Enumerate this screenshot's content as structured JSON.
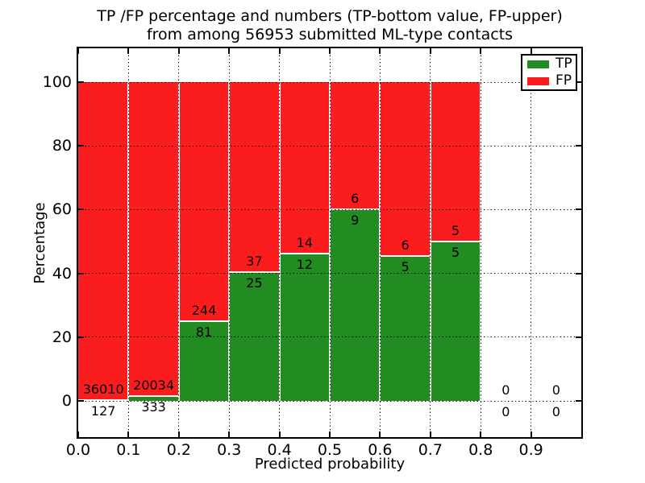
{
  "title": {
    "line1": "TP /FP percentage and numbers (TP-bottom value, FP-upper)",
    "line2": "from among 56953 submitted ML-type contacts"
  },
  "chart_data": {
    "type": "bar",
    "stacked": true,
    "title": "TP /FP percentage and numbers (TP-bottom value, FP-upper) from among 56953 submitted ML-type contacts",
    "total_submitted_contacts": 56953,
    "xlabel": "Predicted probability",
    "ylabel": "Percentage",
    "x_tick_labels": [
      "0.0",
      "0.1",
      "0.2",
      "0.3",
      "0.4",
      "0.5",
      "0.6",
      "0.7",
      "0.8",
      "0.9"
    ],
    "y_ticks": [
      0,
      20,
      40,
      60,
      80,
      100
    ],
    "y_tick_labels": [
      "0",
      "20",
      "40",
      "60",
      "80",
      "100"
    ],
    "xlim": [
      0.0,
      1.0
    ],
    "bin_width": 0.1,
    "bin_starts": [
      0.0,
      0.1,
      0.2,
      0.3,
      0.4,
      0.5,
      0.6,
      0.7,
      0.8,
      0.9
    ],
    "grid": "dotted",
    "legend_position": "upper right",
    "series": [
      {
        "name": "TP",
        "color": "#228b22",
        "counts": [
          127,
          333,
          81,
          25,
          12,
          9,
          5,
          5,
          0,
          0
        ]
      },
      {
        "name": "FP",
        "color": "#fb1d1d",
        "counts": [
          36010,
          20034,
          244,
          37,
          14,
          6,
          6,
          5,
          0,
          0
        ]
      }
    ],
    "tp_percent": [
      0.35,
      1.64,
      24.92,
      40.32,
      46.15,
      60.0,
      45.45,
      50.0,
      0,
      0
    ],
    "fp_percent": [
      99.65,
      98.36,
      75.08,
      59.68,
      53.85,
      40.0,
      54.55,
      50.0,
      0,
      0
    ]
  },
  "legend": {
    "items": [
      {
        "label": "TP",
        "color": "#228b22"
      },
      {
        "label": "FP",
        "color": "#fb1d1d"
      }
    ]
  },
  "colors": {
    "tp": "#228b22",
    "fp": "#fb1d1d",
    "grid": "#000000",
    "background": "#ffffff",
    "text": "#000000"
  }
}
